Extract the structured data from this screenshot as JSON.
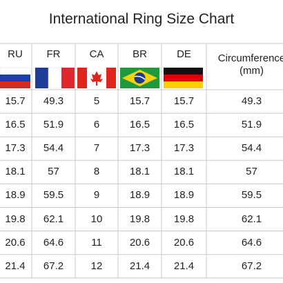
{
  "title": "International Ring Size Chart",
  "table": {
    "header": [
      "RU",
      "FR",
      "CA",
      "BR",
      "DE",
      "Circumference\n(mm)"
    ],
    "rows": [
      [
        15.7,
        49.3,
        5,
        15.7,
        15.7,
        49.3
      ],
      [
        16.5,
        51.9,
        6,
        16.5,
        16.5,
        51.9
      ],
      [
        17.3,
        54.4,
        7,
        17.3,
        17.3,
        54.4
      ],
      [
        18.1,
        57,
        8,
        18.1,
        18.1,
        57
      ],
      [
        18.9,
        59.5,
        9,
        18.9,
        18.9,
        59.5
      ],
      [
        19.8,
        62.1,
        10,
        19.8,
        19.8,
        62.1
      ],
      [
        20.6,
        64.6,
        11,
        20.6,
        20.6,
        64.6
      ],
      [
        21.4,
        67.2,
        12,
        21.4,
        21.4,
        67.2
      ]
    ]
  }
}
